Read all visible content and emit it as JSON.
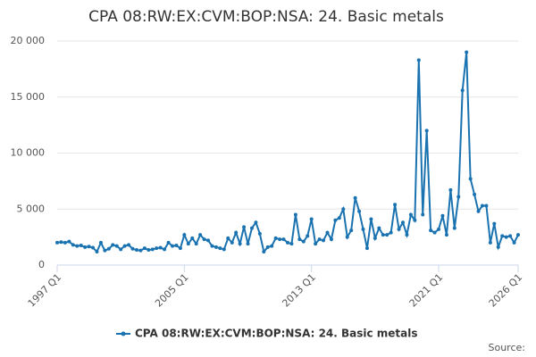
{
  "chart_data": {
    "type": "line",
    "title": "CPA 08:RW:EX:CVM:BOP:NSA: 24. Basic metals",
    "source": "Source:",
    "categories": [
      "1997 Q1",
      null,
      null,
      null,
      null,
      null,
      null,
      null,
      null,
      null,
      null,
      null,
      null,
      null,
      null,
      null,
      null,
      null,
      null,
      null,
      null,
      null,
      null,
      null,
      null,
      null,
      null,
      null,
      null,
      null,
      null,
      null,
      "2005 Q1",
      null,
      null,
      null,
      null,
      null,
      null,
      null,
      null,
      null,
      null,
      null,
      null,
      null,
      null,
      null,
      null,
      null,
      null,
      null,
      null,
      null,
      null,
      null,
      null,
      null,
      null,
      null,
      null,
      null,
      null,
      null,
      "2013 Q1",
      null,
      null,
      null,
      null,
      null,
      null,
      null,
      null,
      null,
      null,
      null,
      null,
      null,
      null,
      null,
      null,
      null,
      null,
      null,
      null,
      null,
      null,
      null,
      null,
      null,
      null,
      null,
      null,
      null,
      null,
      null,
      "2021 Q1",
      null,
      null,
      null,
      null,
      null,
      null,
      null,
      null,
      null,
      null,
      null,
      null,
      null,
      null,
      null,
      null,
      null,
      null,
      null,
      "2026 Q1"
    ],
    "series": [
      {
        "name": "CPA 08:RW:EX:CVM:BOP:NSA: 24. Basic metals",
        "color": "#1a73b0",
        "values": [
          2000,
          2050,
          2000,
          2100,
          1800,
          1700,
          1750,
          1600,
          1650,
          1550,
          1200,
          2000,
          1300,
          1450,
          1800,
          1700,
          1400,
          1700,
          1800,
          1450,
          1350,
          1300,
          1500,
          1350,
          1400,
          1500,
          1550,
          1400,
          2000,
          1700,
          1750,
          1500,
          2700,
          1900,
          2400,
          1900,
          2700,
          2300,
          2200,
          1700,
          1600,
          1500,
          1400,
          2400,
          2000,
          2900,
          1900,
          3400,
          1900,
          3300,
          3800,
          2800,
          1200,
          1600,
          1700,
          2400,
          2300,
          2300,
          2000,
          1900,
          4500,
          2300,
          2100,
          2600,
          4100,
          1900,
          2300,
          2200,
          2900,
          2300,
          4000,
          4200,
          5000,
          2500,
          3100,
          6000,
          4800,
          3200,
          1500,
          4100,
          2400,
          3300,
          2700,
          2700,
          2900,
          5400,
          3200,
          3800,
          2700,
          4500,
          4000,
          18300,
          4500,
          12000,
          3100,
          2900,
          3200,
          4400,
          2700,
          6700,
          3300,
          6100,
          15600,
          19000,
          7700,
          6300,
          4800,
          5300,
          5300,
          2000,
          3700,
          1600,
          2600,
          2500,
          2600,
          2000,
          2700
        ]
      }
    ],
    "ylim": [
      0,
      20000
    ],
    "yticks": [
      0,
      {
        "value": 5000,
        "label": "5 000"
      },
      {
        "value": 10000,
        "label": "10 000"
      },
      {
        "value": 15000,
        "label": "15 000"
      },
      {
        "value": 20000,
        "label": "20 000"
      }
    ],
    "grid": true,
    "legend": "bottom"
  }
}
